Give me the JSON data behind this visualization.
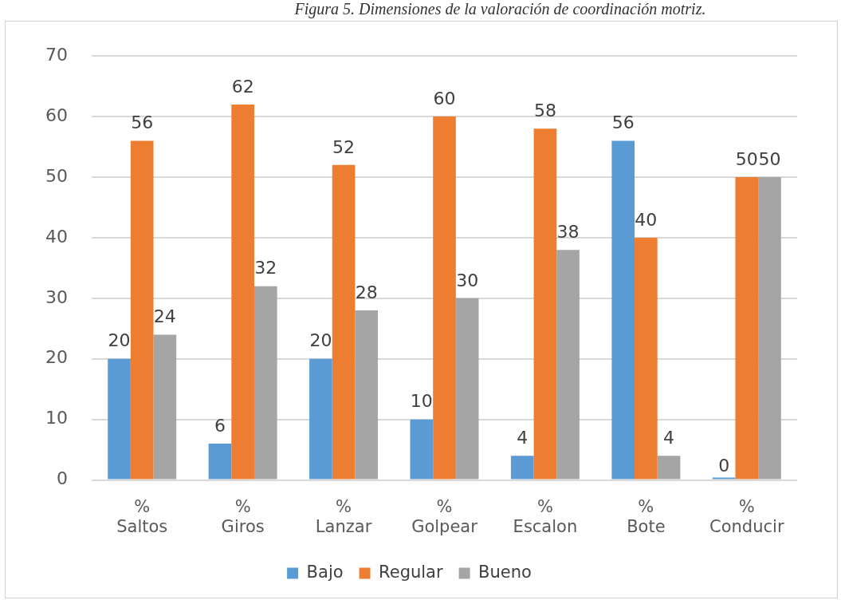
{
  "chart_data": {
    "type": "bar",
    "title": "Figura 5. Dimensiones de la valoración de coordinación motriz.",
    "categories": [
      "%\nSaltos",
      "%\nGiros",
      "%\nLanzar",
      "%\nGolpear",
      "%\nEscalon",
      "%\nBote",
      "%\nConducir"
    ],
    "series": [
      {
        "name": "Bajo",
        "color": "#5b9bd5",
        "values": [
          20,
          6,
          20,
          10,
          4,
          56,
          0
        ]
      },
      {
        "name": "Regular",
        "color": "#ed7d31",
        "values": [
          56,
          62,
          52,
          60,
          58,
          40,
          50
        ]
      },
      {
        "name": "Bueno",
        "color": "#a5a5a5",
        "values": [
          24,
          32,
          28,
          30,
          38,
          4,
          50
        ]
      }
    ],
    "ylim": [
      0,
      70
    ],
    "yticks": [
      0,
      10,
      20,
      30,
      40,
      50,
      60,
      70
    ],
    "grid": "y",
    "legend": "bottom",
    "data_labels": true
  }
}
